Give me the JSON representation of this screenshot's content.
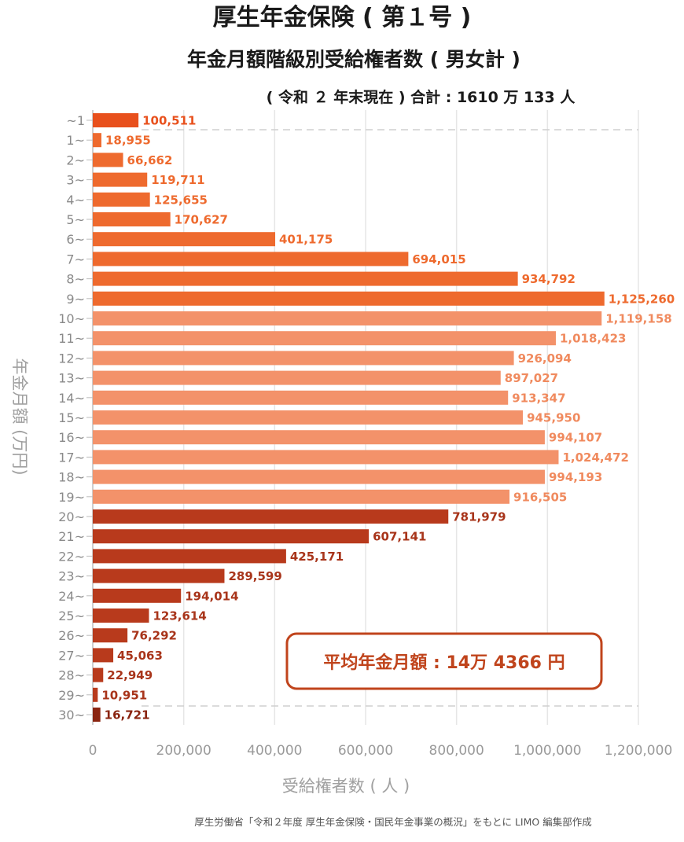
{
  "chart_data": {
    "type": "bar",
    "orientation": "horizontal",
    "title": "厚生年金保険 ( 第１号 )",
    "subtitle": "年金月額階級別受給権者数 ( 男女計 )",
    "note": "( 令和 ２ 年末現在 ) 合計 : 1610 万 133 人",
    "xlabel": "受給権者数 ( 人 )",
    "ylabel": "年金月額 (万円)",
    "xlim": [
      0,
      1200000
    ],
    "xticks": [
      "0",
      "200,000",
      "400,000",
      "600,000",
      "800,000",
      "1,000,000",
      "1,200,000"
    ],
    "grid": true,
    "categories": [
      "~1",
      "1~",
      "2~",
      "3~",
      "4~",
      "5~",
      "6~",
      "7~",
      "8~",
      "9~",
      "10~",
      "11~",
      "12~",
      "13~",
      "14~",
      "15~",
      "16~",
      "17~",
      "18~",
      "19~",
      "20~",
      "21~",
      "22~",
      "23~",
      "24~",
      "25~",
      "26~",
      "27~",
      "28~",
      "29~",
      "30~"
    ],
    "values": [
      100511,
      18955,
      66662,
      119711,
      125655,
      170627,
      401175,
      694015,
      934792,
      1125260,
      1119158,
      1018423,
      926094,
      897027,
      913347,
      945950,
      994107,
      1024472,
      994193,
      916505,
      781979,
      607141,
      425171,
      289599,
      194014,
      123614,
      76292,
      45063,
      22949,
      10951,
      16721
    ],
    "value_labels": [
      "100,511",
      "18,955",
      "66,662",
      "119,711",
      "125,655",
      "170,627",
      "401,175",
      "694,015",
      "934,792",
      "1,125,260",
      "1,119,158",
      "1,018,423",
      "926,094",
      "897,027",
      "913,347",
      "945,950",
      "994,107",
      "1,024,472",
      "994,193",
      "916,505",
      "781,979",
      "607,141",
      "425,171",
      "289,599",
      "194,014",
      "123,614",
      "76,292",
      "45,063",
      "22,949",
      "10,951",
      "16,721"
    ],
    "bar_colors": [
      "#e8501c",
      "#ee6a2e",
      "#ee6a2e",
      "#ee6a2e",
      "#ee6a2e",
      "#ee6a2e",
      "#ee6a2e",
      "#ee6a2e",
      "#ee6a2e",
      "#ee6a2e",
      "#f3926a",
      "#f3926a",
      "#f3926a",
      "#f3926a",
      "#f3926a",
      "#f3926a",
      "#f3926a",
      "#f3926a",
      "#f3926a",
      "#f3926a",
      "#b83a1c",
      "#b83a1c",
      "#b83a1c",
      "#b83a1c",
      "#b83a1c",
      "#b83a1c",
      "#b83a1c",
      "#b83a1c",
      "#b83a1c",
      "#b83a1c",
      "#8a2410"
    ],
    "label_colors": [
      "#e8501c",
      "#ee6a2e",
      "#ee6a2e",
      "#ee6a2e",
      "#ee6a2e",
      "#ee6a2e",
      "#ee6a2e",
      "#ee6a2e",
      "#ee6a2e",
      "#ee6a2e",
      "#f08a5e",
      "#f08a5e",
      "#f08a5e",
      "#f08a5e",
      "#f08a5e",
      "#f08a5e",
      "#f08a5e",
      "#f08a5e",
      "#f08a5e",
      "#f08a5e",
      "#a8341a",
      "#a8341a",
      "#a8341a",
      "#a8341a",
      "#a8341a",
      "#a8341a",
      "#a8341a",
      "#a8341a",
      "#a8341a",
      "#a8341a",
      "#8a2410"
    ],
    "annotation": "平均年金月額 : 14万 4366 円",
    "source": "厚生労働省「令和２年度 厚生年金保険・国民年金事業の概況」をもとに LIMO 編集部作成"
  }
}
